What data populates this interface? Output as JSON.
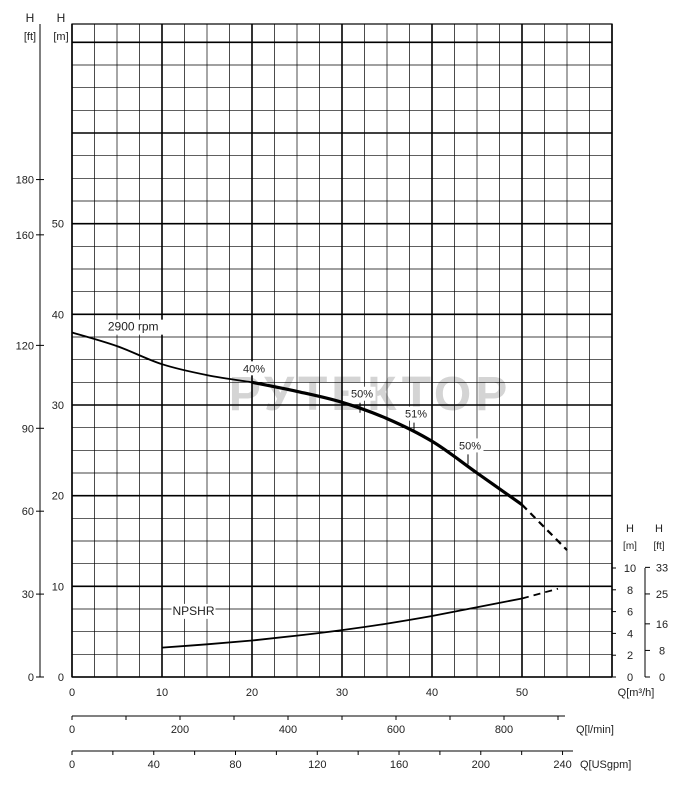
{
  "watermark": "РУТЕКТОР",
  "colors": {
    "grid": "#000000",
    "curve": "#000000",
    "watermark": "#d4d4d4",
    "background": "#ffffff"
  },
  "chart_data": {
    "type": "line",
    "grid": true,
    "left_axes": [
      {
        "label": "H",
        "unit": "[ft]",
        "ticks": [
          "0",
          "30",
          "60",
          "90",
          "120",
          "160",
          "180"
        ]
      },
      {
        "label": "H",
        "unit": "[m]",
        "ticks": [
          "0",
          "10",
          "20",
          "30",
          "40",
          "50"
        ]
      }
    ],
    "right_axes": [
      {
        "label": "H",
        "unit": "[m]",
        "ticks": [
          "0",
          "2",
          "4",
          "6",
          "8",
          "10"
        ]
      },
      {
        "label": "H",
        "unit": "[ft]",
        "ticks": [
          "0",
          "8",
          "16",
          "25",
          "33"
        ]
      }
    ],
    "bottom_axes": [
      {
        "label": "Q[m³/h]",
        "ticks": [
          "0",
          "10",
          "20",
          "30",
          "40",
          "50"
        ]
      },
      {
        "label": "Q[l/min]",
        "ticks": [
          "0",
          "200",
          "400",
          "600",
          "800"
        ]
      },
      {
        "label": "Q[USgpm]",
        "ticks": [
          "0",
          "40",
          "80",
          "120",
          "160",
          "200",
          "240"
        ]
      }
    ],
    "x_range_m3h": [
      0,
      60
    ],
    "y_range_m": [
      0,
      60
    ],
    "npshr_range_m": [
      0,
      10
    ],
    "series": [
      {
        "name": "2900 rpm",
        "axis": "H[m]",
        "solid": [
          [
            0,
            38
          ],
          [
            5,
            36.5
          ],
          [
            10,
            34.5
          ],
          [
            15,
            33.3
          ],
          [
            20,
            32.5
          ],
          [
            25,
            31.5
          ],
          [
            30,
            30.3
          ],
          [
            35,
            28.5
          ],
          [
            40,
            26
          ],
          [
            45,
            22.5
          ],
          [
            50,
            19
          ]
        ],
        "dashed": [
          [
            50,
            19
          ],
          [
            55,
            14
          ]
        ]
      },
      {
        "name": "NPSHR",
        "axis": "NPSHR[m]",
        "solid": [
          [
            10,
            2.7
          ],
          [
            15,
            3.0
          ],
          [
            20,
            3.35
          ],
          [
            25,
            3.8
          ],
          [
            30,
            4.3
          ],
          [
            35,
            4.9
          ],
          [
            40,
            5.6
          ],
          [
            45,
            6.4
          ],
          [
            50,
            7.2
          ]
        ],
        "dashed": [
          [
            50,
            7.2
          ],
          [
            54,
            8.1
          ]
        ]
      }
    ],
    "efficiency_labels": [
      {
        "text": "40%",
        "q": 20,
        "h": 32.5
      },
      {
        "text": "50%",
        "q": 32,
        "h": 29.7
      },
      {
        "text": "51%",
        "q": 38,
        "h": 27.5
      },
      {
        "text": "50%",
        "q": 44,
        "h": 24
      }
    ]
  }
}
